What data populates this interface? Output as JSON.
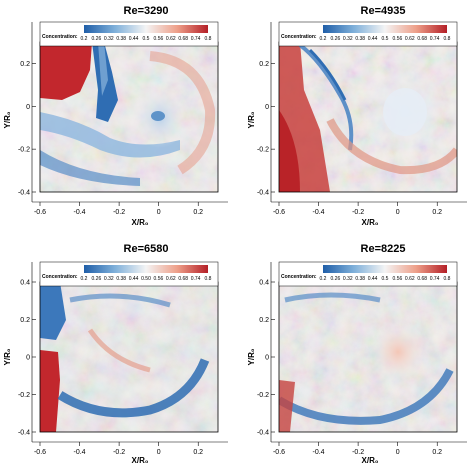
{
  "chart_data": [
    {
      "type": "heatmap",
      "title": "Re=3290",
      "xlabel": "X/R₀",
      "ylabel": "Y/R₀",
      "xlim": [
        -0.6,
        0.3
      ],
      "ylim": [
        -0.4,
        0.3
      ],
      "x_ticks": [
        "-0.6",
        "-0.4",
        "-0.2",
        "0",
        "0.2"
      ],
      "y_ticks": [
        "0.2",
        "0",
        "-0.2",
        "-0.4"
      ],
      "colorbar": {
        "label": "Concentration:",
        "ticks": [
          "0.2",
          "0.26",
          "0.32",
          "0.38",
          "0.44",
          "0.5",
          "0.56",
          "0.62",
          "0.68",
          "0.74",
          "0.8"
        ]
      }
    },
    {
      "type": "heatmap",
      "title": "Re=4935",
      "xlabel": "X/R₀",
      "ylabel": "Y/R₀",
      "xlim": [
        -0.6,
        0.3
      ],
      "ylim": [
        -0.4,
        0.3
      ],
      "x_ticks": [
        "-0.6",
        "-0.4",
        "-0.2",
        "0",
        "0.2"
      ],
      "y_ticks": [
        "0.2",
        "0",
        "-0.2",
        "-0.4"
      ],
      "colorbar": {
        "label": "Concentration:",
        "ticks": [
          "0.2",
          "0.26",
          "0.32",
          "0.38",
          "0.44",
          "0.5",
          "0.56",
          "0.62",
          "0.68",
          "0.74",
          "0.8"
        ]
      }
    },
    {
      "type": "heatmap",
      "title": "Re=6580",
      "xlabel": "X/R₀",
      "ylabel": "Y/R₀",
      "xlim": [
        -0.6,
        0.3
      ],
      "ylim": [
        -0.4,
        0.4
      ],
      "x_ticks": [
        "-0.6",
        "-0.4",
        "-0.2",
        "0",
        "0.2"
      ],
      "y_ticks": [
        "0.4",
        "0.2",
        "0",
        "-0.2",
        "-0.4"
      ],
      "colorbar": {
        "label": "Concentration:",
        "ticks": [
          "0.2",
          "0.26",
          "0.32",
          "0.38",
          "0.44",
          "0.50",
          "0.56",
          "0.62",
          "0.68",
          "0.74",
          "0.8"
        ]
      }
    },
    {
      "type": "heatmap",
      "title": "Re=8225",
      "xlabel": "X/R₀",
      "ylabel": "Y/R₀",
      "xlim": [
        -0.6,
        0.3
      ],
      "ylim": [
        -0.4,
        0.4
      ],
      "x_ticks": [
        "-0.6",
        "-0.4",
        "-0.2",
        "0",
        "0.2"
      ],
      "y_ticks": [
        "0.4",
        "0.2",
        "0",
        "-0.2",
        "-0.4"
      ],
      "colorbar": {
        "label": "Concentration:",
        "ticks": [
          "0.2",
          "0.26",
          "0.32",
          "0.38",
          "0.44",
          "0.5",
          "0.56",
          "0.62",
          "0.68",
          "0.74",
          "0.8"
        ]
      }
    }
  ],
  "colors": {
    "low": "#2f6db3",
    "mid": "#f4f4f4",
    "high": "#c2272d"
  }
}
